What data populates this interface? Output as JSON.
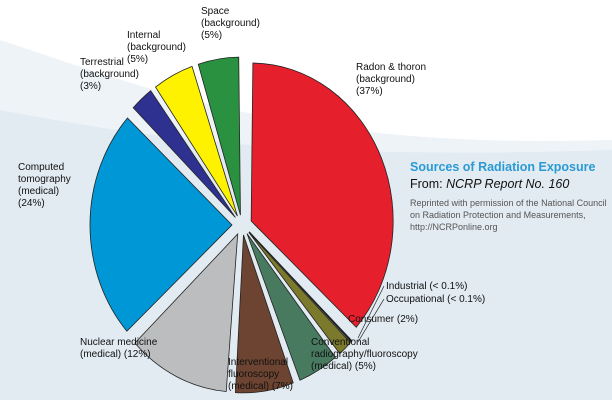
{
  "chart_data": {
    "type": "pie",
    "title": "Sources of Radiation Exposure",
    "subtitle_prefix": "From: ",
    "subtitle_source": "NCRP Report No. 160",
    "credit": "Reprinted with permission of the National Council on Radiation Protection and Measurements, http://NCRPonline.org",
    "start": "12 o'clock, clockwise",
    "slices": [
      {
        "label": "Radon & thoron\n(background)\n(37%)",
        "value": 37,
        "color": "#e61f2d"
      },
      {
        "label": "Industrial (< 0.1%)",
        "value": 0.1,
        "color": "#dfe6ec"
      },
      {
        "label": "Occupational (< 0.1%)",
        "value": 0.1,
        "color": "#dfe6ec"
      },
      {
        "label": "Consumer (2%)",
        "value": 2,
        "color": "#7b7a2c"
      },
      {
        "label": "Conventional\nradiography/fluoroscopy\n(medical) (5%)",
        "value": 5,
        "color": "#487a60"
      },
      {
        "label": "Interventional\nfluoroscopy\n(medical) (7%)",
        "value": 7,
        "color": "#6d4431"
      },
      {
        "label": "Nuclear medicine\n(medical) (12%)",
        "value": 12,
        "color": "#bcbdbf"
      },
      {
        "label": "Computed\ntomography\n(medical)\n(24%)",
        "value": 24,
        "color": "#0097d6"
      },
      {
        "label": "Terrestrial\n(background)\n(3%)",
        "value": 3,
        "color": "#2e3190"
      },
      {
        "label": "Internal\n(background)\n(5%)",
        "value": 5,
        "color": "#fff200"
      },
      {
        "label": "Space\n(background)\n(5%)",
        "value": 5,
        "color": "#2a9141"
      }
    ]
  }
}
